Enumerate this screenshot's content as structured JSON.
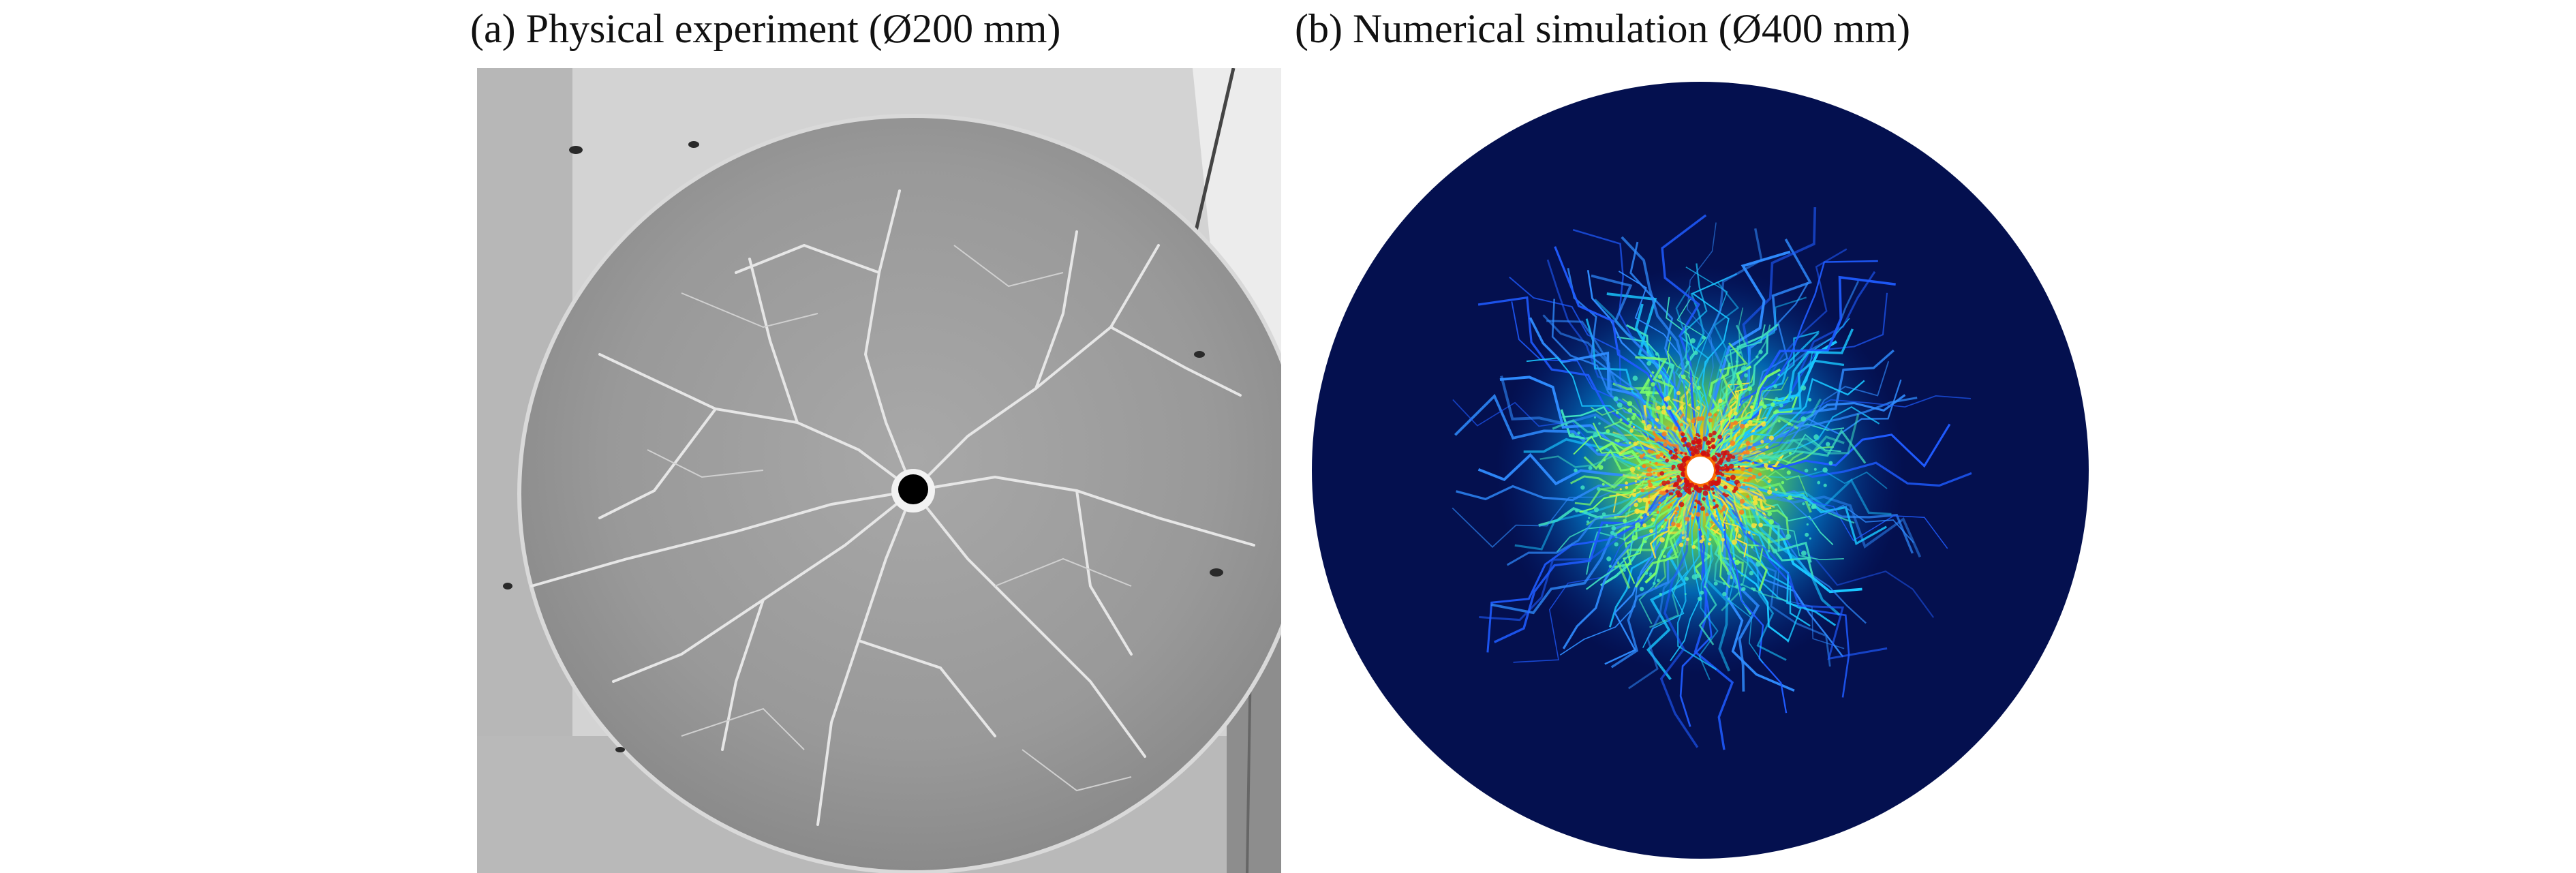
{
  "figure": {
    "panels": [
      {
        "id": "a",
        "caption": "(a) Physical experiment (Ø200 mm)",
        "image": "photograph of fractured concrete specimen with central borehole and radial cracks"
      },
      {
        "id": "b",
        "caption": "(b) Numerical simulation (Ø400 mm)",
        "image": "simulated damage field on circular specimen, dark blue background with radial crack pattern colored blue-cyan-green-yellow-red toward a white central hole"
      }
    ]
  },
  "colors": {
    "sim_background": "#04104f",
    "sim_hole": "#ffffff",
    "photo_specimen": "#9a9a9a",
    "photo_background": "#c9c9c9",
    "photo_hole": "#000000"
  }
}
